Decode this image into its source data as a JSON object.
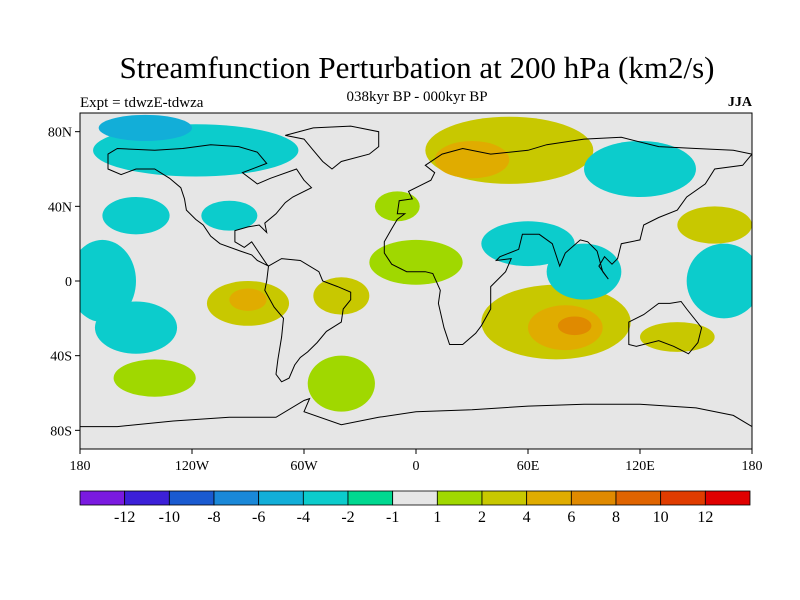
{
  "figure": {
    "title": "Streamfunction Perturbation at 200 hPa (km2/s)",
    "subtitle": "038kyr BP - 000kyr BP",
    "left_note": "Expt = tdwzE-tdwza",
    "right_note": "JJA"
  },
  "map": {
    "lon_range": [
      -180,
      180
    ],
    "lat_range": [
      -90,
      90
    ],
    "lat_ticks": [
      {
        "value": 80,
        "label": "80N"
      },
      {
        "value": 40,
        "label": "40N"
      },
      {
        "value": 0,
        "label": "0"
      },
      {
        "value": -40,
        "label": "40S"
      },
      {
        "value": -80,
        "label": "80S"
      }
    ],
    "lon_ticks": [
      {
        "value": -180,
        "label": "180"
      },
      {
        "value": -120,
        "label": "120W"
      },
      {
        "value": -60,
        "label": "60W"
      },
      {
        "value": 0,
        "label": "0"
      },
      {
        "value": 60,
        "label": "60E"
      },
      {
        "value": 120,
        "label": "120E"
      },
      {
        "value": 180,
        "label": "180"
      }
    ],
    "background_color": "#e6e6e6"
  },
  "colorbar": {
    "colors": [
      "#7a1ae0",
      "#3c20d8",
      "#1a5ad0",
      "#1a88d8",
      "#12aed8",
      "#0ccccc",
      "#00d890",
      "#e6e6e6",
      "#a0d800",
      "#c8c800",
      "#e0ac00",
      "#e08a00",
      "#e06400",
      "#e03c00",
      "#e00000"
    ],
    "labels": [
      "-12",
      "-10",
      "-8",
      "-6",
      "-4",
      "-2",
      "-1",
      "1",
      "2",
      "4",
      "6",
      "8",
      "10",
      "12"
    ]
  },
  "anomalies": [
    {
      "lon": -118,
      "lat": 70,
      "rx": 55,
      "ry": 14,
      "level": 5
    },
    {
      "lon": -145,
      "lat": 82,
      "rx": 25,
      "ry": 7,
      "level": 4
    },
    {
      "lon": -150,
      "lat": 35,
      "rx": 18,
      "ry": 10,
      "level": 5
    },
    {
      "lon": -168,
      "lat": 0,
      "rx": 18,
      "ry": 22,
      "level": 5
    },
    {
      "lon": -150,
      "lat": -25,
      "rx": 22,
      "ry": 14,
      "level": 5
    },
    {
      "lon": -100,
      "lat": 35,
      "rx": 15,
      "ry": 8,
      "level": 5
    },
    {
      "lon": -90,
      "lat": -12,
      "rx": 22,
      "ry": 12,
      "level": 9
    },
    {
      "lon": -90,
      "lat": -10,
      "rx": 10,
      "ry": 6,
      "level": 10
    },
    {
      "lon": -40,
      "lat": -8,
      "rx": 15,
      "ry": 10,
      "level": 9
    },
    {
      "lon": 0,
      "lat": 10,
      "rx": 25,
      "ry": 12,
      "level": 8
    },
    {
      "lon": -40,
      "lat": -55,
      "rx": 18,
      "ry": 15,
      "level": 8
    },
    {
      "lon": -140,
      "lat": -52,
      "rx": 22,
      "ry": 10,
      "level": 8
    },
    {
      "lon": 50,
      "lat": 70,
      "rx": 45,
      "ry": 18,
      "level": 9
    },
    {
      "lon": 30,
      "lat": 65,
      "rx": 20,
      "ry": 10,
      "level": 10
    },
    {
      "lon": -10,
      "lat": 40,
      "rx": 12,
      "ry": 8,
      "level": 8
    },
    {
      "lon": 75,
      "lat": -22,
      "rx": 40,
      "ry": 20,
      "level": 9
    },
    {
      "lon": 80,
      "lat": -25,
      "rx": 20,
      "ry": 12,
      "level": 10
    },
    {
      "lon": 85,
      "lat": -24,
      "rx": 9,
      "ry": 5,
      "level": 11
    },
    {
      "lon": 140,
      "lat": -30,
      "rx": 20,
      "ry": 8,
      "level": 9
    },
    {
      "lon": 120,
      "lat": 60,
      "rx": 30,
      "ry": 15,
      "level": 5
    },
    {
      "lon": 60,
      "lat": 20,
      "rx": 25,
      "ry": 12,
      "level": 5
    },
    {
      "lon": 90,
      "lat": 5,
      "rx": 20,
      "ry": 15,
      "level": 5
    },
    {
      "lon": 160,
      "lat": 30,
      "rx": 20,
      "ry": 10,
      "level": 9
    },
    {
      "lon": 165,
      "lat": 0,
      "rx": 20,
      "ry": 20,
      "level": 5
    }
  ]
}
